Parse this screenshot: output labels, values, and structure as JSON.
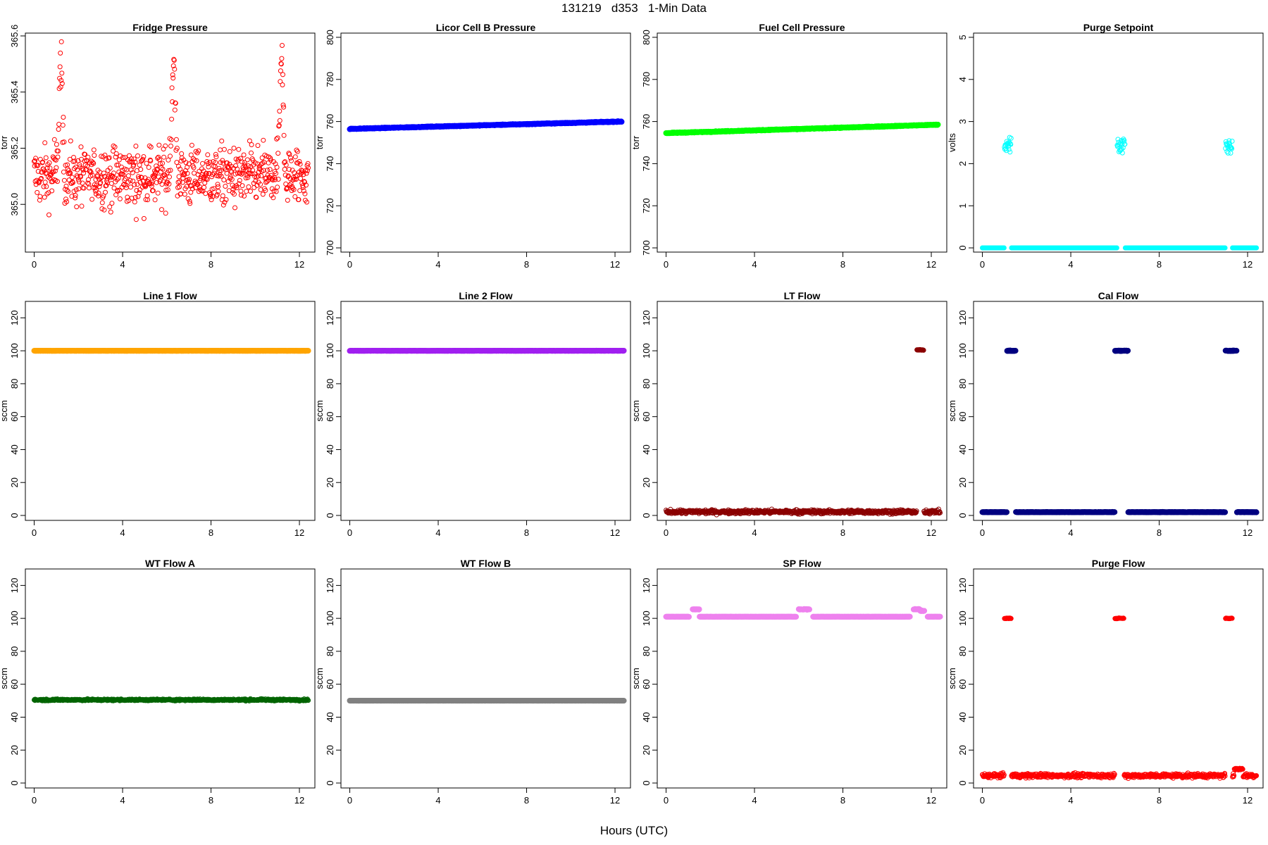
{
  "figure": {
    "title": "131219   d353   1-Min Data",
    "xlabel": "Hours (UTC)"
  },
  "chart_data": [
    {
      "type": "scatter",
      "title": "Fridge Pressure",
      "ylabel": "torr",
      "xlim": [
        -0.4,
        12.7
      ],
      "ylim": [
        364.83,
        365.61
      ],
      "xticks": [
        "0",
        "4",
        "8",
        "12"
      ],
      "yticks": [
        "365.0",
        "365.2",
        "365.4",
        "365.6"
      ],
      "marker": "open-circle",
      "series": [
        {
          "color": "#ff0000",
          "baseline": 365.1,
          "jitter": 0.18,
          "peaks": [
            [
              1.2,
              365.56
            ],
            [
              6.3,
              365.59
            ],
            [
              11.2,
              365.58
            ]
          ],
          "x_range": [
            0,
            12.4
          ],
          "n": 745
        }
      ]
    },
    {
      "type": "scatter",
      "title": "Licor Cell B Pressure",
      "ylabel": "torr",
      "xlim": [
        -0.4,
        12.7
      ],
      "ylim": [
        698,
        802
      ],
      "xticks": [
        "0",
        "4",
        "8",
        "12"
      ],
      "yticks": [
        "700",
        "720",
        "740",
        "760",
        "780",
        "800"
      ],
      "marker": "filled-circle",
      "series": [
        {
          "color": "#0000ff",
          "trend": [
            [
              0,
              756.5
            ],
            [
              12.3,
              760
            ]
          ],
          "jitter": 0.3,
          "x_range": [
            0,
            12.3
          ],
          "n": 740
        }
      ]
    },
    {
      "type": "scatter",
      "title": "Fuel Cell Pressure",
      "ylabel": "torr",
      "xlim": [
        -0.4,
        12.7
      ],
      "ylim": [
        698,
        802
      ],
      "xticks": [
        "0",
        "4",
        "8",
        "12"
      ],
      "yticks": [
        "700",
        "720",
        "740",
        "760",
        "780",
        "800"
      ],
      "marker": "filled-circle",
      "series": [
        {
          "color": "#00ff00",
          "trend": [
            [
              0,
              754.5
            ],
            [
              12.3,
              758.5
            ]
          ],
          "jitter": 0.3,
          "x_range": [
            0,
            12.3
          ],
          "n": 740
        }
      ]
    },
    {
      "type": "scatter",
      "title": "Purge Setpoint",
      "ylabel": "volts",
      "xlim": [
        -0.4,
        12.7
      ],
      "ylim": [
        -0.1,
        5.1
      ],
      "xticks": [
        "0",
        "4",
        "8",
        "12"
      ],
      "yticks": [
        "0",
        "1",
        "2",
        "3",
        "4",
        "5"
      ],
      "marker": "open-circle",
      "series": [
        {
          "color": "#00ffff",
          "baseline": 0,
          "jitter": 0.0,
          "x_range": [
            0,
            12.4
          ],
          "n": 745,
          "segments": [
            [
              1.0,
              1.3,
              2.44
            ],
            [
              6.1,
              6.45,
              2.47
            ],
            [
              11.0,
              11.3,
              2.44
            ]
          ]
        }
      ]
    },
    {
      "type": "scatter",
      "title": "Line 1 Flow",
      "ylabel": "sccm",
      "xlim": [
        -0.4,
        12.7
      ],
      "ylim": [
        -3,
        130
      ],
      "xticks": [
        "0",
        "4",
        "8",
        "12"
      ],
      "yticks": [
        "0",
        "20",
        "40",
        "60",
        "80",
        "100",
        "120"
      ],
      "marker": "filled-circle",
      "series": [
        {
          "color": "#ffa500",
          "baseline": 100,
          "jitter": 0.1,
          "x_range": [
            0,
            12.4
          ],
          "n": 745
        }
      ]
    },
    {
      "type": "scatter",
      "title": "Line 2 Flow",
      "ylabel": "sccm",
      "xlim": [
        -0.4,
        12.7
      ],
      "ylim": [
        -3,
        130
      ],
      "xticks": [
        "0",
        "4",
        "8",
        "12"
      ],
      "yticks": [
        "0",
        "20",
        "40",
        "60",
        "80",
        "100",
        "120"
      ],
      "marker": "filled-circle",
      "series": [
        {
          "color": "#a020f0",
          "baseline": 100,
          "jitter": 0.1,
          "x_range": [
            0,
            12.4
          ],
          "n": 745
        }
      ]
    },
    {
      "type": "scatter",
      "title": "LT Flow",
      "ylabel": "sccm",
      "xlim": [
        -0.4,
        12.7
      ],
      "ylim": [
        -3,
        130
      ],
      "xticks": [
        "0",
        "4",
        "8",
        "12"
      ],
      "yticks": [
        "0",
        "20",
        "40",
        "60",
        "80",
        "100",
        "120"
      ],
      "marker": "open-circle",
      "series": [
        {
          "color": "#8b0000",
          "baseline": 2.2,
          "jitter": 2.0,
          "x_range": [
            0,
            12.4
          ],
          "n": 745,
          "segments": [
            [
              11.35,
              11.65,
              100.5
            ]
          ]
        }
      ]
    },
    {
      "type": "scatter",
      "title": "Cal Flow",
      "ylabel": "sccm",
      "xlim": [
        -0.4,
        12.7
      ],
      "ylim": [
        -3,
        130
      ],
      "xticks": [
        "0",
        "4",
        "8",
        "12"
      ],
      "yticks": [
        "0",
        "20",
        "40",
        "60",
        "80",
        "100",
        "120"
      ],
      "marker": "filled-circle",
      "series": [
        {
          "color": "#000080",
          "baseline": 2,
          "jitter": 0.2,
          "x_range": [
            0,
            12.4
          ],
          "n": 745,
          "segments": [
            [
              1.1,
              1.5,
              100
            ],
            [
              6.0,
              6.6,
              100
            ],
            [
              11.0,
              11.5,
              100
            ]
          ]
        }
      ]
    },
    {
      "type": "scatter",
      "title": "WT Flow A",
      "ylabel": "sccm",
      "xlim": [
        -0.4,
        12.7
      ],
      "ylim": [
        -3,
        130
      ],
      "xticks": [
        "0",
        "4",
        "8",
        "12"
      ],
      "yticks": [
        "0",
        "20",
        "40",
        "60",
        "80",
        "100",
        "120"
      ],
      "marker": "open-circle",
      "series": [
        {
          "color": "#006400",
          "baseline": 50.5,
          "jitter": 0.9,
          "x_range": [
            0,
            12.4
          ],
          "n": 745
        }
      ]
    },
    {
      "type": "scatter",
      "title": "WT Flow B",
      "ylabel": "sccm",
      "xlim": [
        -0.4,
        12.7
      ],
      "ylim": [
        -3,
        130
      ],
      "xticks": [
        "0",
        "4",
        "8",
        "12"
      ],
      "yticks": [
        "0",
        "20",
        "40",
        "60",
        "80",
        "100",
        "120"
      ],
      "marker": "filled-circle",
      "series": [
        {
          "color": "#808080",
          "baseline": 50,
          "jitter": 0.05,
          "x_range": [
            0,
            12.4
          ],
          "n": 745
        }
      ]
    },
    {
      "type": "scatter",
      "title": "SP Flow",
      "ylabel": "sccm",
      "xlim": [
        -0.4,
        12.7
      ],
      "ylim": [
        -3,
        130
      ],
      "xticks": [
        "0",
        "4",
        "8",
        "12"
      ],
      "yticks": [
        "0",
        "20",
        "40",
        "60",
        "80",
        "100",
        "120"
      ],
      "marker": "filled-circle",
      "series": [
        {
          "color": "#ee82ee",
          "baseline": 101,
          "jitter": 0.1,
          "x_range": [
            0,
            12.4
          ],
          "n": 745,
          "segments": [
            [
              1.2,
              1.5,
              105.5
            ],
            [
              6.0,
              6.5,
              105.5
            ],
            [
              11.2,
              11.5,
              105.5
            ],
            [
              11.5,
              11.7,
              104.5
            ]
          ],
          "gaps": [
            [
              1.05,
              1.2
            ],
            [
              5.9,
              6.0
            ],
            [
              6.5,
              6.65
            ],
            [
              11.05,
              11.2
            ],
            [
              11.7,
              11.82
            ]
          ]
        }
      ]
    },
    {
      "type": "scatter",
      "title": "Purge Flow",
      "ylabel": "sccm",
      "xlim": [
        -0.4,
        12.7
      ],
      "ylim": [
        -3,
        130
      ],
      "xticks": [
        "0",
        "4",
        "8",
        "12"
      ],
      "yticks": [
        "0",
        "20",
        "40",
        "60",
        "80",
        "100",
        "120"
      ],
      "marker": "open-circle",
      "series": [
        {
          "color": "#ff0000",
          "baseline": 4.5,
          "jitter": 2.2,
          "x_range": [
            0,
            12.4
          ],
          "n": 745,
          "segments": [
            [
              1.0,
              1.3,
              100
            ],
            [
              6.0,
              6.4,
              100
            ],
            [
              11.0,
              11.3,
              100
            ]
          ],
          "bumps": [
            [
              11.6,
              8.5
            ]
          ]
        }
      ]
    }
  ]
}
